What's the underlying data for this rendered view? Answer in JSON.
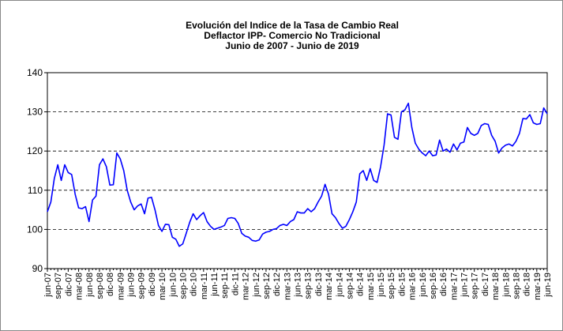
{
  "chart_data": {
    "type": "line",
    "title": [
      "Evolución del Indice de la Tasa de Cambio Real",
      "Deflactor IPP- Comercio No Tradicional",
      "Junio de 2007  -  Junio de 2019"
    ],
    "categories": [
      "jun-07",
      null,
      null,
      "sep-07",
      null,
      null,
      "dic-07",
      null,
      null,
      "mar-08",
      null,
      null,
      "jun-08",
      null,
      null,
      "sep-08",
      null,
      null,
      "dic-08",
      null,
      null,
      "mar-09",
      null,
      null,
      "jun-09",
      null,
      null,
      "sep-09",
      null,
      null,
      "dic-09",
      null,
      null,
      "mar-10",
      null,
      null,
      "jun-10",
      null,
      null,
      "sep-10",
      null,
      null,
      "dic-10",
      null,
      null,
      "mar-11",
      null,
      null,
      "jun-11",
      null,
      null,
      "sep-11",
      null,
      null,
      "dic-11",
      null,
      null,
      "mar-12",
      null,
      null,
      "jun-12",
      null,
      null,
      "sep-12",
      null,
      null,
      "dic-12",
      null,
      null,
      "mar-13",
      null,
      null,
      "jun-13",
      null,
      null,
      "sep-13",
      null,
      null,
      "dic-13",
      null,
      null,
      "mar-14",
      null,
      null,
      "jun-14",
      null,
      null,
      "sep-14",
      null,
      null,
      "dic-14",
      null,
      null,
      "mar-15",
      null,
      null,
      "jun-15",
      null,
      null,
      "sep-15",
      null,
      null,
      "dic-15",
      null,
      null,
      "mar-16",
      null,
      null,
      "jun-16",
      null,
      null,
      "sep-16",
      null,
      null,
      "dic-16",
      null,
      null,
      "mar-17",
      null,
      null,
      "jun-17",
      null,
      null,
      "sep-17",
      null,
      null,
      "dic-17",
      null,
      null,
      "mar-18",
      null,
      null,
      "jun-18",
      null,
      null,
      "sep-18",
      null,
      null,
      "dic-18",
      null,
      null,
      "mar-19",
      null,
      null,
      "jun-19"
    ],
    "series": [
      {
        "color": "#0000ff",
        "values": [
          104.5,
          107,
          113,
          116.5,
          112.5,
          116.5,
          114.5,
          114,
          109,
          105.5,
          105.3,
          105.8,
          102,
          107.5,
          108.5,
          116.5,
          118,
          116,
          111.3,
          111.4,
          119.5,
          118,
          115,
          110,
          107,
          105,
          106,
          106.5,
          104,
          108,
          108.2,
          105,
          101,
          99.5,
          101.3,
          101.2,
          98,
          97.5,
          95.7,
          96.3,
          99,
          101.8,
          104,
          102.5,
          103.5,
          104.3,
          102,
          100.8,
          100,
          100.3,
          100.6,
          101,
          102.8,
          103,
          102.8,
          101.5,
          99,
          98.3,
          98,
          97.2,
          97,
          97.3,
          98.8,
          99.3,
          99.5,
          100,
          100.2,
          101,
          101.3,
          101,
          102,
          102.5,
          104.5,
          104.2,
          104.2,
          105.3,
          104.5,
          105.3,
          107,
          108.5,
          111.5,
          109,
          104,
          103,
          101.5,
          100.3,
          100.8,
          102.5,
          104.5,
          107,
          114.2,
          115,
          112.5,
          115.5,
          112.5,
          112,
          116,
          121.5,
          129.5,
          129.2,
          123.5,
          123,
          130,
          130.5,
          132.2,
          126,
          122,
          120.5,
          119.5,
          118.8,
          120,
          118.8,
          119,
          122.8,
          120,
          120.5,
          119.7,
          121.8,
          120.3,
          122,
          122.3,
          126,
          124.5,
          124,
          124.5,
          126.5,
          127,
          126.8,
          124,
          122.5,
          119.5,
          120.8,
          121.5,
          121.8,
          121.3,
          122.5,
          124.5,
          128.3,
          128.2,
          129.3,
          127.2,
          126.8,
          127,
          131,
          129.5
        ]
      }
    ],
    "ylim": [
      90,
      140
    ],
    "yticks": [
      90,
      100,
      110,
      120,
      130,
      140
    ],
    "grid": true
  }
}
